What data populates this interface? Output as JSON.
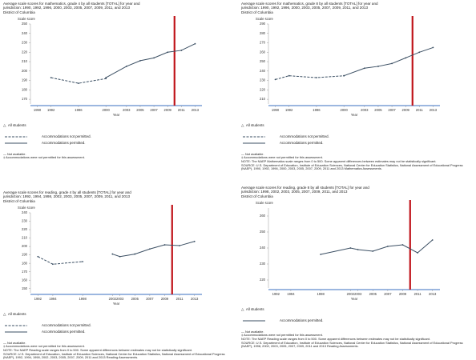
{
  "chart_data": [
    {
      "type": "line",
      "title": "Average scale scores for mathematics, grade 4 by all students [TOTAL] for year and jurisdiction: 1990, 1992, 1996, 2000, 2003, 2005, 2007, 2009, 2011, and 2013",
      "jurisdiction": "District of Columbia",
      "y_label": "Scale score",
      "x_label": "Year",
      "x": [
        1990,
        1992,
        1996,
        2000,
        2003,
        2005,
        2007,
        2009,
        2011,
        2013
      ],
      "series": [
        {
          "name": "Accommodations not permitted.",
          "color": "#3b4f63",
          "line_style": "dashed",
          "values": [
            null,
            193,
            187,
            192,
            null,
            null,
            null,
            null,
            null,
            null
          ]
        },
        {
          "name": "Accommodations permitted.",
          "color": "#3b4f63",
          "line_style": "solid",
          "values": [
            null,
            null,
            null,
            193,
            205,
            211,
            214,
            220,
            222,
            229
          ]
        }
      ],
      "xlim": [
        1989,
        2014
      ],
      "xticks": [
        1990,
        1992,
        1996,
        2000,
        2003,
        2005,
        2007,
        2009,
        2011,
        2013
      ],
      "ylim": [
        165,
        250
      ],
      "yticks": [
        170,
        180,
        190,
        200,
        210,
        220,
        230,
        240,
        250
      ],
      "highlight_x": 2010,
      "highlight_color": "#c0141a",
      "legend_group": "All students",
      "notes": [
        "— Not available.",
        "‡ Accommodations were not permitted for this assessment."
      ]
    },
    {
      "type": "line",
      "title": "Average scale scores for mathematics, grade 8 by all students [TOTAL] for year and jurisdiction: 1990, 1992, 1996, 2000, 2003, 2005, 2007, 2009, 2011, and 2013",
      "jurisdiction": "District of Columbia",
      "y_label": "Scale score",
      "x_label": "Year",
      "x": [
        1990,
        1992,
        1996,
        2000,
        2003,
        2005,
        2007,
        2009,
        2011,
        2013
      ],
      "series": [
        {
          "name": "Accommodations not permitted.",
          "color": "#3b4f63",
          "line_style": "dashed",
          "values": [
            231,
            235,
            233,
            235,
            null,
            null,
            null,
            null,
            null,
            null
          ]
        },
        {
          "name": "Accommodations permitted.",
          "color": "#3b4f63",
          "line_style": "solid",
          "values": [
            null,
            null,
            null,
            235,
            243,
            245,
            248,
            254,
            260,
            265
          ]
        }
      ],
      "xlim": [
        1989,
        2014
      ],
      "xticks": [
        1990,
        1992,
        1996,
        2000,
        2003,
        2005,
        2007,
        2009,
        2011,
        2013
      ],
      "ylim": [
        205,
        290
      ],
      "yticks": [
        210,
        220,
        230,
        240,
        250,
        260,
        270,
        280,
        290
      ],
      "highlight_x": 2010,
      "highlight_color": "#c0141a",
      "legend_group": "All students",
      "notes": [
        "— Not available.",
        "‡ Accommodations were not permitted for this assessment.",
        "NOTE: The NAEP Mathematics scale ranges from 0 to 500. Some apparent differences between estimates may not be statistically significant.",
        "SOURCE: U.S. Department of Education, Institute of Education Sciences, National Center for Education Statistics, National Assessment of Educational Progress (NAEP), 1990, 1992, 1996, 2000, 2003, 2005, 2007, 2009, 2011 and 2013 Mathematics Assessments."
      ]
    },
    {
      "type": "line",
      "title": "Average scale scores for reading, grade 4 by all students [TOTAL] for year and jurisdiction: 1992, 1994, 1998, 2002, 2003, 2005, 2007, 2009, 2011, and 2013",
      "jurisdiction": "District of Columbia",
      "y_label": "Scale score",
      "x_label": "Year",
      "x": [
        1992,
        1994,
        1998,
        2002,
        2003,
        2005,
        2007,
        2009,
        2011,
        2013
      ],
      "series": [
        {
          "name": "Accommodations not permitted.",
          "color": "#3b4f63",
          "line_style": "dashed",
          "values": [
            188,
            179,
            182,
            null,
            null,
            null,
            null,
            null,
            null,
            null
          ]
        },
        {
          "name": "Accommodations permitted.",
          "color": "#3b4f63",
          "line_style": "solid",
          "values": [
            null,
            null,
            null,
            191,
            188,
            191,
            197,
            202,
            201,
            206
          ]
        }
      ],
      "xlim": [
        1991,
        2014
      ],
      "xticks": [
        1992,
        1994,
        1998,
        2002,
        2003,
        2005,
        2007,
        2009,
        2011,
        2013
      ],
      "ylim": [
        145,
        240
      ],
      "yticks": [
        150,
        160,
        170,
        180,
        190,
        200,
        210,
        220,
        230,
        240
      ],
      "highlight_x": 2010,
      "highlight_color": "#c0141a",
      "legend_group": "All students",
      "notes": [
        "— Not available.",
        "‡ Accommodations were not permitted for this assessment.",
        "NOTE: The NAEP Reading scale ranges from 0 to 500. Some apparent differences between estimates may not be statistically significant.",
        "SOURCE: U.S. Department of Education, Institute of Education Sciences, National Center for Education Statistics, National Assessment of Educational Progress (NAEP), 1992, 1994, 1998, 2002, 2003, 2005, 2007, 2009, 2011 and 2013 Reading Assessments."
      ]
    },
    {
      "type": "line",
      "title": "Average scale scores for reading, grade 8 by all students [TOTAL] for year and jurisdiction: 1998, 2002, 2003, 2005, 2007, 2009, 2011, and 2013",
      "jurisdiction": "District of Columbia",
      "y_label": "Scale score",
      "x_label": "Year",
      "x": [
        1998,
        2002,
        2003,
        2005,
        2007,
        2009,
        2011,
        2013
      ],
      "series": [
        {
          "name": "Accommodations permitted.",
          "color": "#3b4f63",
          "line_style": "solid",
          "values": [
            236,
            240,
            239,
            238,
            241,
            242,
            237,
            245
          ]
        }
      ],
      "xlim": [
        1991,
        2014
      ],
      "xticks": [
        1992,
        1994,
        1998,
        2002,
        2003,
        2005,
        2007,
        2009,
        2011,
        2013
      ],
      "ylim": [
        215,
        265
      ],
      "yticks": [
        220,
        230,
        240,
        250,
        260
      ],
      "highlight_x": 2010,
      "highlight_color": "#c0141a",
      "legend_group": "All students",
      "notes": [
        "— Not available.",
        "‡ Accommodations were not permitted for this assessment.",
        "NOTE: The NAEP Reading scale ranges from 0 to 500. Some apparent differences between estimates may not be statistically significant.",
        "SOURCE: U.S. Department of Education, Institute of Education Sciences, National Center for Education Statistics, National Assessment of Educational Progress (NAEP), 1998, 2002, 2003, 2005, 2007, 2009, 2011 and 2013 Reading Assessments."
      ]
    }
  ]
}
